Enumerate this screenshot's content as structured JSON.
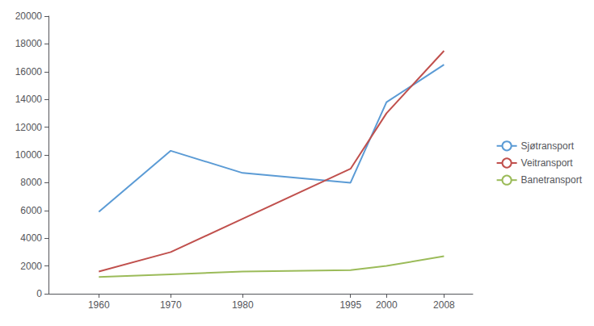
{
  "chart_data": {
    "type": "line",
    "x": [
      1960,
      1970,
      1980,
      1995,
      2000,
      2008
    ],
    "series": [
      {
        "name": "Sjøtransport",
        "color": "#5B9BD5",
        "values": [
          5900,
          10300,
          8700,
          8000,
          13800,
          16500
        ]
      },
      {
        "name": "Veitransport",
        "color": "#C0504D",
        "values": [
          1600,
          3000,
          5400,
          9000,
          13000,
          17500
        ]
      },
      {
        "name": "Banetransport",
        "color": "#9BBB59",
        "values": [
          1200,
          1400,
          1600,
          1700,
          2000,
          2700
        ]
      }
    ],
    "xlim": [
      1953,
      2012
    ],
    "xticks": [
      1960,
      1970,
      1980,
      1995,
      2000,
      2008
    ],
    "ylim": [
      0,
      20000
    ],
    "yticks": [
      0,
      2000,
      4000,
      6000,
      8000,
      10000,
      12000,
      14000,
      16000,
      18000,
      20000
    ],
    "grid": false,
    "legend": "right"
  }
}
